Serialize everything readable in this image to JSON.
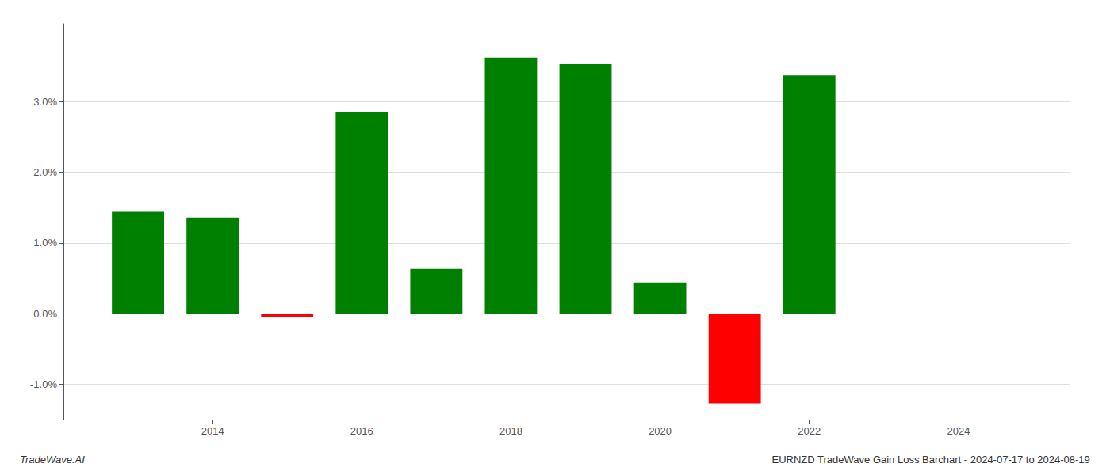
{
  "chart_data": {
    "type": "bar",
    "x": [
      2013,
      2014,
      2015,
      2016,
      2017,
      2018,
      2019,
      2020,
      2021,
      2022,
      2023
    ],
    "values": [
      0.0144,
      0.0136,
      -0.0005,
      0.0285,
      0.0063,
      0.0362,
      0.0353,
      0.0044,
      -0.0127,
      0.0337,
      0.0
    ],
    "colors": [
      "#008000",
      "#008000",
      "#ff0000",
      "#008000",
      "#008000",
      "#008000",
      "#008000",
      "#008000",
      "#ff0000",
      "#008000",
      "#ffffff"
    ],
    "xlim": [
      2012,
      2025.5
    ],
    "xticks": [
      2014,
      2016,
      2018,
      2020,
      2022,
      2024
    ],
    "ylim": [
      -0.015,
      0.041
    ],
    "yticks": [
      {
        "value": -0.01,
        "label": "-1.0%"
      },
      {
        "value": 0.0,
        "label": "0.0%"
      },
      {
        "value": 0.01,
        "label": "1.0%"
      },
      {
        "value": 0.02,
        "label": "2.0%"
      },
      {
        "value": 0.03,
        "label": "3.0%"
      }
    ],
    "grid": true,
    "annotations": [
      "TradeWave.AI",
      "EURNZD TradeWave Gain Loss Barchart - 2024-07-17 to 2024-08-19"
    ]
  }
}
